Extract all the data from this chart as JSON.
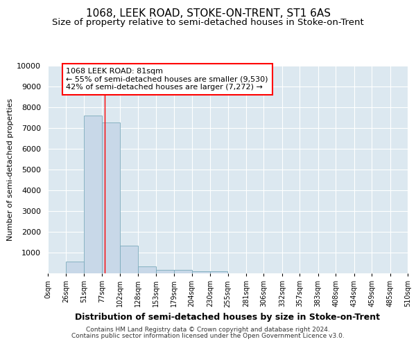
{
  "title": "1068, LEEK ROAD, STOKE-ON-TRENT, ST1 6AS",
  "subtitle": "Size of property relative to semi-detached houses in Stoke-on-Trent",
  "xlabel": "Distribution of semi-detached houses by size in Stoke-on-Trent",
  "ylabel": "Number of semi-detached properties",
  "bin_edges": [
    0,
    26,
    51,
    77,
    102,
    128,
    153,
    179,
    204,
    230,
    255,
    281,
    306,
    332,
    357,
    383,
    408,
    434,
    459,
    485,
    510
  ],
  "bar_heights": [
    0,
    580,
    7600,
    7280,
    1340,
    330,
    155,
    155,
    100,
    105,
    0,
    0,
    0,
    0,
    0,
    0,
    0,
    0,
    0,
    0
  ],
  "bar_color": "#c8d8e8",
  "bar_edge_color": "#7aaabb",
  "red_line_x": 81,
  "ylim": [
    0,
    10000
  ],
  "yticks": [
    0,
    1000,
    2000,
    3000,
    4000,
    5000,
    6000,
    7000,
    8000,
    9000,
    10000
  ],
  "annotation_line1": "1068 LEEK ROAD: 81sqm",
  "annotation_line2": "← 55% of semi-detached houses are smaller (9,530)",
  "annotation_line3": "42% of semi-detached houses are larger (7,272) →",
  "footer_line1": "Contains HM Land Registry data © Crown copyright and database right 2024.",
  "footer_line2": "Contains public sector information licensed under the Open Government Licence v3.0.",
  "background_color": "#ffffff",
  "plot_bg_color": "#dce8f0",
  "grid_color": "#ffffff",
  "title_fontsize": 11,
  "subtitle_fontsize": 9.5,
  "tick_labels": [
    "0sqm",
    "26sqm",
    "51sqm",
    "77sqm",
    "102sqm",
    "128sqm",
    "153sqm",
    "179sqm",
    "204sqm",
    "230sqm",
    "255sqm",
    "281sqm",
    "306sqm",
    "332sqm",
    "357sqm",
    "383sqm",
    "408sqm",
    "434sqm",
    "459sqm",
    "485sqm",
    "510sqm"
  ]
}
